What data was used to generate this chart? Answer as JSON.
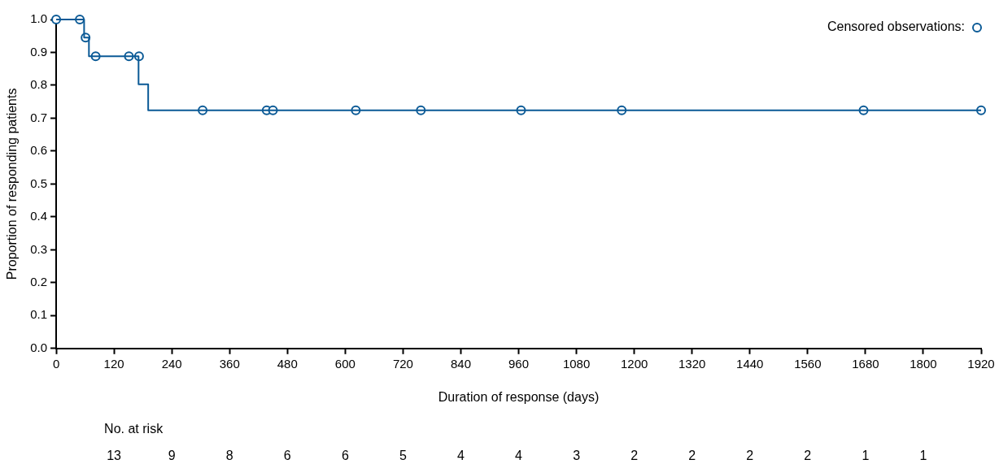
{
  "chart_data": {
    "type": "step",
    "xlabel": "Duration of response (days)",
    "ylabel": "Proportion of responding patients",
    "xlim": [
      0,
      1920
    ],
    "xticks": [
      0,
      120,
      240,
      360,
      480,
      600,
      720,
      840,
      960,
      1080,
      1200,
      1320,
      1440,
      1560,
      1680,
      1800,
      1920
    ],
    "ylim": [
      0,
      1
    ],
    "yticks": [
      {
        "value": 0,
        "label": "0.0"
      },
      {
        "value": 0.1,
        "label": "0.1"
      },
      {
        "value": 0.2,
        "label": "0.2"
      },
      {
        "value": 0.3,
        "label": "0.3"
      },
      {
        "value": 0.4,
        "label": "0.4"
      },
      {
        "value": 0.5,
        "label": "0.5"
      },
      {
        "value": 0.6,
        "label": "0.6"
      },
      {
        "value": 0.7,
        "label": "0.7"
      },
      {
        "value": 0.8,
        "label": "0.8"
      },
      {
        "value": 0.9,
        "label": "0.9"
      },
      {
        "value": 1,
        "label": "1.0"
      }
    ],
    "grid": false,
    "legend": "top right",
    "series": [
      {
        "type": "step",
        "color": "#0b5a96",
        "x": [
          0,
          58,
          68,
          171,
          191,
          1920
        ],
        "values": [
          1,
          0.945,
          0.888,
          0.803,
          0.724,
          0.724
        ]
      },
      {
        "type": "scatter",
        "name": "Censored observations:",
        "color": "#0b5a96",
        "marker": "circle",
        "x": [
          0,
          49,
          61,
          82,
          151,
          172,
          304,
          437,
          450,
          622,
          757,
          965,
          1174,
          1676,
          1920
        ],
        "values": [
          1,
          1,
          0.945,
          0.888,
          0.888,
          0.888,
          0.724,
          0.724,
          0.724,
          0.724,
          0.724,
          0.724,
          0.724,
          0.724,
          0.724
        ]
      }
    ],
    "annotations": [
      "No. at risk",
      "13",
      "9",
      "8",
      "6",
      "6",
      "5",
      "4",
      "4",
      "3",
      "2",
      "2",
      "2",
      "2",
      "1",
      "1"
    ]
  }
}
